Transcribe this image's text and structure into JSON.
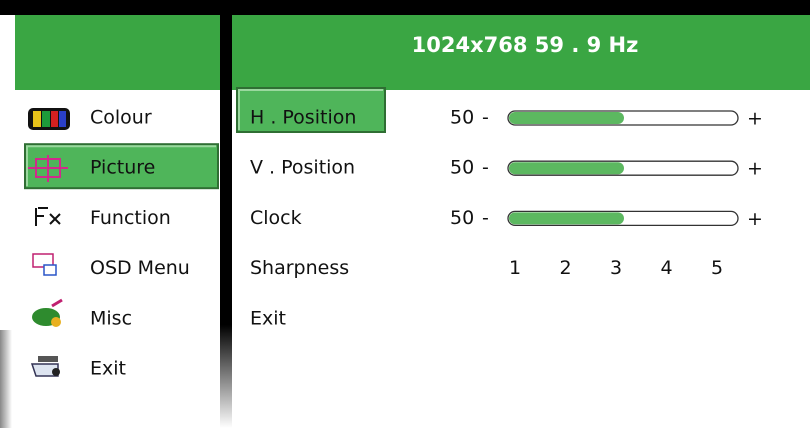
{
  "header": {
    "title": "1024x768 59 . 9 Hz"
  },
  "left_menu": {
    "selected": 1,
    "items": [
      {
        "label": "Colour"
      },
      {
        "label": "Picture"
      },
      {
        "label": "Function"
      },
      {
        "label": "OSD Menu"
      },
      {
        "label": "Misc"
      },
      {
        "label": "Exit"
      }
    ]
  },
  "right_menu": {
    "selected": 0,
    "items": [
      {
        "label": "H . Position",
        "value": 50
      },
      {
        "label": "V . Position",
        "value": 50
      },
      {
        "label": "Clock",
        "value": 50
      },
      {
        "label": "Sharpness",
        "levels": [
          1,
          2,
          3,
          4,
          5
        ]
      },
      {
        "label": "Exit"
      }
    ]
  },
  "slider": {
    "range": [
      0,
      100
    ],
    "minus": "-",
    "plus": "+"
  }
}
